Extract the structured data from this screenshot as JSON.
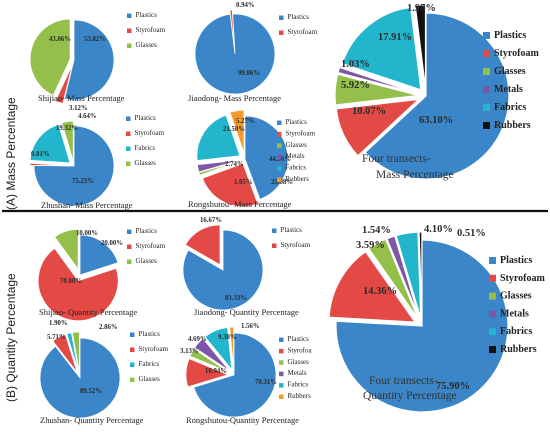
{
  "colors": {
    "Plastics": "#3a86c8",
    "Styrofoam": "#e34a45",
    "Glasses": "#93bf4a",
    "Metals": "#7e57a8",
    "Fabrics": "#22b5cc",
    "Rubbers": "#111111",
    "Rubbers_small": "#f39a2c"
  },
  "sections": [
    {
      "label": "(A)  Mass Percentage"
    },
    {
      "label": "(B) Quantity Percentage"
    }
  ],
  "chart_data": [
    {
      "type": "pie",
      "title": "Shijiao- Mass Percentage",
      "categories": [
        "Plastics",
        "Styrofoam",
        "Glasses"
      ],
      "values": [
        53.82,
        3.12,
        43.06
      ],
      "labels": [
        "53.82%",
        "3.12%",
        "43.06%"
      ]
    },
    {
      "type": "pie",
      "title": "Jiaodong- Mass Percentage",
      "categories": [
        "Plastics",
        "Styrofoam"
      ],
      "values": [
        99.06,
        0.94
      ],
      "labels": [
        "99.06%",
        "0.94%"
      ]
    },
    {
      "type": "pie",
      "title": "Zhushan- Mass Percentage",
      "categories": [
        "Plastics",
        "Styrofoam",
        "Fabrics",
        "Glasses"
      ],
      "values": [
        75.23,
        0.81,
        19.32,
        4.64
      ],
      "labels": [
        "75.23%",
        "0.81%",
        "19.32%",
        "4.64%"
      ]
    },
    {
      "type": "pie",
      "title": "Rongshutou- Mass Percentage",
      "categories": [
        "Plastics",
        "Styrofoam",
        "Glasses",
        "Metals",
        "Fabrics",
        "Rubbers"
      ],
      "values": [
        44.36,
        25.08,
        1.05,
        2.74,
        21.5,
        5.27
      ],
      "labels": [
        "44.36%",
        "25.08%",
        "1.05%",
        "2.74%",
        "21.50%",
        "5.27%"
      ]
    },
    {
      "type": "pie",
      "title": "Four transects- Mass Percentage",
      "categories": [
        "Plastics",
        "Styrofoam",
        "Glasses",
        "Metals",
        "Fabrics",
        "Rubbers"
      ],
      "values": [
        63.1,
        10.07,
        5.92,
        1.03,
        17.91,
        1.97
      ],
      "labels": [
        "63.10%",
        "10.07%",
        "5.92%",
        "1.03%",
        "17.91%",
        "1.97%"
      ]
    },
    {
      "type": "pie",
      "title": "Shijiao- Quantity Percentage",
      "categories": [
        "Plastics",
        "Styrofoam",
        "Glasses"
      ],
      "values": [
        20.0,
        70.0,
        10.0
      ],
      "labels": [
        "20.00%",
        "70.00%",
        "10.00%"
      ]
    },
    {
      "type": "pie",
      "title": "Jiaodong- Quantity Percentage",
      "categories": [
        "Plastics",
        "Styrofoam"
      ],
      "values": [
        83.33,
        16.67
      ],
      "labels": [
        "83.33%",
        "16.67%"
      ]
    },
    {
      "type": "pie",
      "title": "Zhushan- Quantity Percentage",
      "categories": [
        "Plastics",
        "Styrofoam",
        "Fabrics",
        "Glasses"
      ],
      "values": [
        89.52,
        5.71,
        1.9,
        2.86
      ],
      "labels": [
        "89.52%",
        "5.71%",
        "1.90%",
        "2.86%"
      ]
    },
    {
      "type": "pie",
      "title": "Rongshutou-Quantity Percentage",
      "categories": [
        "Plastics",
        "Styrofoam",
        "Glasses",
        "Metals",
        "Fabrics",
        "Rubbers"
      ],
      "values": [
        70.31,
        10.94,
        3.13,
        4.69,
        9.38,
        1.56
      ],
      "labels": [
        "70.31%",
        "10.94%",
        "3.13%",
        "4.69%",
        "9.38%",
        "1.56%"
      ]
    },
    {
      "type": "pie",
      "title": "Four transects- Quantity Percentage",
      "categories": [
        "Plastics",
        "Styrofoam",
        "Glasses",
        "Metals",
        "Fabrics",
        "Rubbers"
      ],
      "values": [
        75.9,
        14.36,
        3.59,
        1.54,
        4.1,
        0.51
      ],
      "labels": [
        "75.90%",
        "14.36%",
        "3.59%",
        "1.54%",
        "4.10%",
        "0.51%"
      ]
    }
  ],
  "legends": [
    [
      "Plastics",
      "Styrofoam",
      "Glasses"
    ],
    [
      "Plastics",
      "Styrofoam"
    ],
    [
      "Plastics",
      "Styrofoam",
      "Fabrics",
      "Glasses"
    ],
    [
      "Plastics",
      "Styrofoam",
      "Glasses",
      "Metals",
      "Fabrics",
      "Rubbers"
    ],
    [
      "Plastics",
      "Styrofoam",
      "Glasses",
      "Metals",
      "Fabrics",
      "Rubbers"
    ],
    [
      "Plastics",
      "Styrofoam",
      "Glasses"
    ],
    [
      "Plastics",
      "Styrofoam"
    ],
    [
      "Plastics",
      "Styrofoam",
      "Fabrics",
      "Glasses"
    ],
    [
      "Plastics",
      "Styrofoa",
      "Glasses",
      "Metals",
      "Fabrics",
      "Rubbers"
    ],
    [
      "Plastics",
      "Styrofoam",
      "Glasses",
      "Metals",
      "Fabrics",
      "Rubbers"
    ]
  ]
}
